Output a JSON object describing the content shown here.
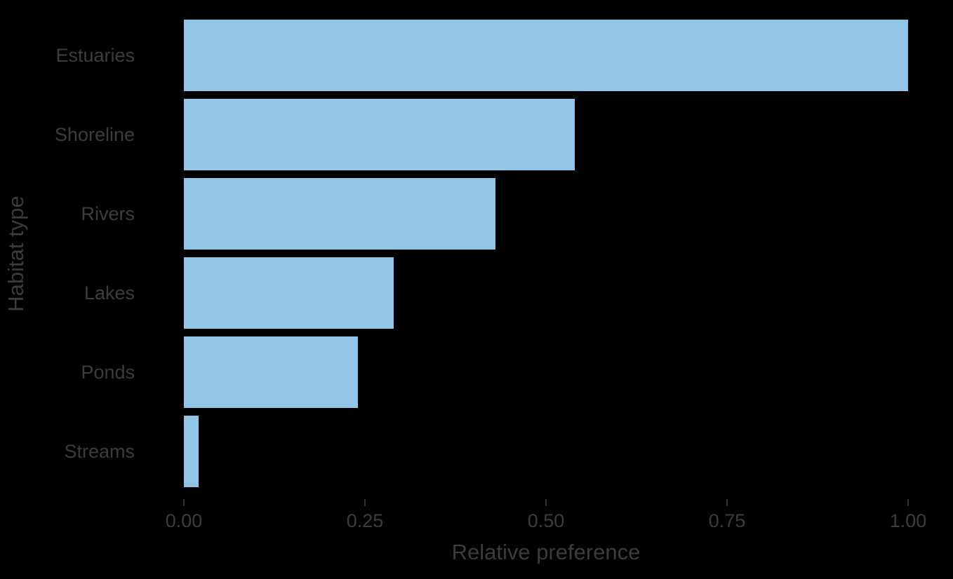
{
  "chart_data": {
    "type": "bar",
    "orientation": "horizontal",
    "title": "",
    "xlabel": "Relative preference",
    "ylabel": "Habitat type",
    "categories": [
      "Estuaries",
      "Shoreline",
      "Rivers",
      "Lakes",
      "Ponds",
      "Streams"
    ],
    "values": [
      1.0,
      0.54,
      0.43,
      0.29,
      0.24,
      0.02
    ],
    "xlim": [
      0.0,
      1.0
    ],
    "xticks": [
      {
        "value": 0.0,
        "label": "0.00"
      },
      {
        "value": 0.25,
        "label": "0.25"
      },
      {
        "value": 0.5,
        "label": "0.50"
      },
      {
        "value": 0.75,
        "label": "0.75"
      },
      {
        "value": 1.0,
        "label": "1.00"
      }
    ],
    "grid": false,
    "legend": false,
    "bar_color": "#92c6e8",
    "background_color": "#000000",
    "text_color": "#3d3d3d",
    "tick_color": "#333333"
  }
}
